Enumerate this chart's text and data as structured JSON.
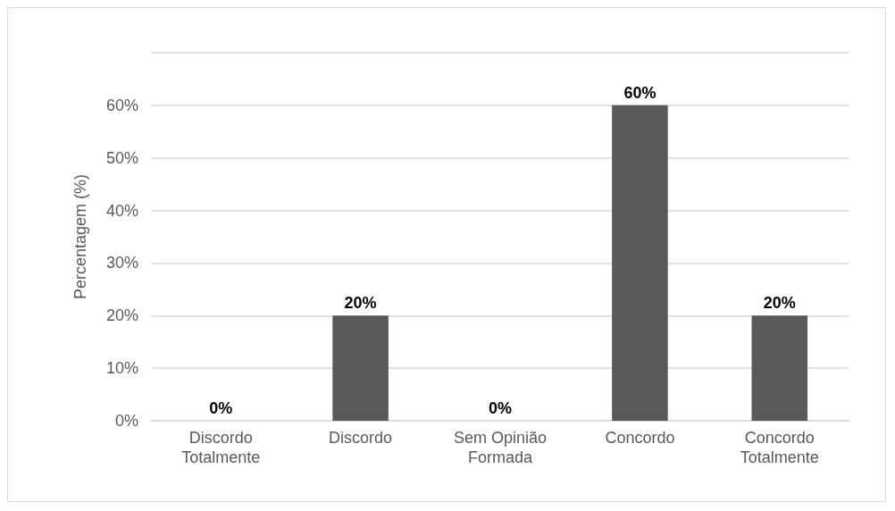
{
  "chart_data": {
    "type": "bar",
    "ylabel": "Percentagem (%)",
    "categories": [
      "Discordo\nTotalmente",
      "Discordo",
      "Sem Opinião\nFormada",
      "Concordo",
      "Concordo\nTotalmente"
    ],
    "values": [
      0,
      20,
      0,
      60,
      20
    ],
    "value_labels": [
      "0%",
      "20%",
      "0%",
      "60%",
      "20%"
    ],
    "color": "#595959",
    "ylim": [
      0,
      70
    ],
    "yticks": [
      {
        "value": 0,
        "label": "0%"
      },
      {
        "value": 10,
        "label": "10%"
      },
      {
        "value": 20,
        "label": "20%"
      },
      {
        "value": 30,
        "label": "30%"
      },
      {
        "value": 40,
        "label": "40%"
      },
      {
        "value": 50,
        "label": "50%"
      },
      {
        "value": 60,
        "label": "60%"
      },
      {
        "value": 70,
        "label": null
      }
    ],
    "grid": "y"
  }
}
